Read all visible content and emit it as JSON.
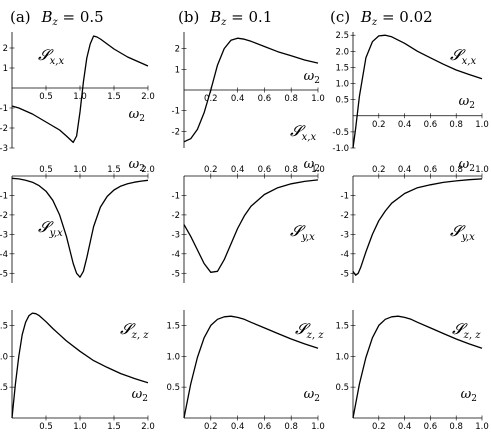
{
  "columns": [
    {
      "prefix": "(a)",
      "var": "B",
      "sub": "z",
      "value": " = 0.5"
    },
    {
      "prefix": "(b)",
      "var": "B",
      "sub": "z",
      "value": " = 0.1"
    },
    {
      "prefix": "(c)",
      "var": "B",
      "sub": "z",
      "value": " = 0.02"
    }
  ],
  "row_labels": [
    {
      "main": "𝓢",
      "sub": "x,x"
    },
    {
      "main": "𝓢",
      "sub": "y,x"
    },
    {
      "main": "𝓢",
      "sub": "z, z"
    }
  ],
  "xlabel": {
    "main": "ω",
    "sub": "2"
  },
  "chart_data": [
    {
      "type": "line",
      "row": 0,
      "col": 0,
      "xlim": [
        0,
        2.0
      ],
      "ylim": [
        -3,
        2.8
      ],
      "xticks": [
        0.5,
        1.0,
        1.5,
        2.0
      ],
      "xtick_labels": [
        "0.5",
        "1.0",
        "1.5",
        "2.0"
      ],
      "yticks": [
        -3,
        -2,
        -1,
        1,
        2
      ],
      "ytick_labels": [
        "-3",
        "-2",
        "-1",
        "1",
        "2"
      ],
      "x": [
        0,
        0.1,
        0.2,
        0.3,
        0.4,
        0.5,
        0.6,
        0.7,
        0.8,
        0.9,
        0.95,
        1.0,
        1.05,
        1.1,
        1.15,
        1.2,
        1.25,
        1.3,
        1.4,
        1.5,
        1.6,
        1.7,
        1.8,
        1.9,
        2.0
      ],
      "y": [
        -0.9,
        -1.0,
        -1.15,
        -1.3,
        -1.5,
        -1.7,
        -1.9,
        -2.1,
        -2.4,
        -2.72,
        -2.4,
        -1.2,
        0.3,
        1.5,
        2.2,
        2.6,
        2.55,
        2.45,
        2.2,
        1.95,
        1.75,
        1.55,
        1.4,
        1.25,
        1.1
      ]
    },
    {
      "type": "line",
      "row": 0,
      "col": 1,
      "xlim": [
        0,
        1.0
      ],
      "ylim": [
        -2.8,
        2.8
      ],
      "xticks": [
        0.2,
        0.4,
        0.6,
        0.8,
        1.0
      ],
      "xtick_labels": [
        "0.2",
        "0.4",
        "0.6",
        "0.8",
        "1.0"
      ],
      "yticks": [
        -2,
        -1,
        1,
        2
      ],
      "ytick_labels": [
        "-2",
        "-1",
        "1",
        "2"
      ],
      "x": [
        0,
        0.05,
        0.1,
        0.15,
        0.2,
        0.25,
        0.3,
        0.35,
        0.4,
        0.45,
        0.5,
        0.6,
        0.7,
        0.8,
        0.9,
        1.0
      ],
      "y": [
        -2.5,
        -2.35,
        -1.9,
        -1.1,
        0.0,
        1.2,
        2.0,
        2.4,
        2.5,
        2.45,
        2.35,
        2.1,
        1.85,
        1.65,
        1.45,
        1.3
      ]
    },
    {
      "type": "line",
      "row": 0,
      "col": 2,
      "xlim": [
        0,
        1.0
      ],
      "ylim": [
        -1.0,
        2.6
      ],
      "xticks": [
        0.2,
        0.4,
        0.6,
        0.8,
        1.0
      ],
      "xtick_labels": [
        "0.2",
        "0.4",
        "0.6",
        "0.8",
        "1.0"
      ],
      "yticks": [
        -1.0,
        -0.5,
        0.5,
        1.0,
        1.5,
        2.0,
        2.5
      ],
      "ytick_labels": [
        "-1.0",
        "-0.5",
        "0.5",
        "1.0",
        "1.5",
        "2.0",
        "2.5"
      ],
      "x": [
        0,
        0.02,
        0.05,
        0.1,
        0.15,
        0.2,
        0.25,
        0.3,
        0.35,
        0.4,
        0.5,
        0.6,
        0.7,
        0.8,
        0.9,
        1.0
      ],
      "y": [
        -1.0,
        -0.4,
        0.6,
        1.8,
        2.3,
        2.48,
        2.5,
        2.45,
        2.35,
        2.25,
        2.0,
        1.8,
        1.6,
        1.42,
        1.28,
        1.15
      ]
    },
    {
      "type": "line",
      "row": 1,
      "col": 0,
      "xlim": [
        0,
        2.0
      ],
      "ylim": [
        -5.5,
        0
      ],
      "xticks": [
        0.5,
        1.0,
        1.5,
        2.0
      ],
      "xtick_labels": [
        "0.5",
        "1.0",
        "1.5",
        "2.0"
      ],
      "yticks": [
        -1,
        -2,
        -3,
        -4,
        -5
      ],
      "ytick_labels": [
        "-1",
        "-2",
        "-3",
        "-4",
        "-5"
      ],
      "x": [
        0,
        0.1,
        0.2,
        0.3,
        0.4,
        0.5,
        0.6,
        0.7,
        0.8,
        0.85,
        0.9,
        0.95,
        1.0,
        1.05,
        1.1,
        1.15,
        1.2,
        1.3,
        1.4,
        1.5,
        1.6,
        1.7,
        1.8,
        1.9,
        2.0
      ],
      "y": [
        -0.12,
        -0.15,
        -0.22,
        -0.32,
        -0.5,
        -0.78,
        -1.25,
        -2.0,
        -3.1,
        -3.8,
        -4.5,
        -5.0,
        -5.2,
        -4.9,
        -4.2,
        -3.4,
        -2.6,
        -1.6,
        -1.05,
        -0.72,
        -0.52,
        -0.4,
        -0.32,
        -0.26,
        -0.22
      ]
    },
    {
      "type": "line",
      "row": 1,
      "col": 1,
      "xlim": [
        0,
        1.0
      ],
      "ylim": [
        -5.5,
        0
      ],
      "xticks": [
        0.2,
        0.4,
        0.6,
        0.8,
        1.0
      ],
      "xtick_labels": [
        "0.2",
        "0.4",
        "0.6",
        "0.8",
        "1.0"
      ],
      "yticks": [
        -1,
        -2,
        -3,
        -4,
        -5
      ],
      "ytick_labels": [
        "-1",
        "-2",
        "-3",
        "-4",
        "-5"
      ],
      "x": [
        0,
        0.05,
        0.1,
        0.15,
        0.2,
        0.25,
        0.3,
        0.35,
        0.4,
        0.45,
        0.5,
        0.6,
        0.7,
        0.8,
        0.9,
        1.0
      ],
      "y": [
        -2.5,
        -3.1,
        -3.8,
        -4.5,
        -4.95,
        -4.9,
        -4.3,
        -3.5,
        -2.7,
        -2.05,
        -1.55,
        -0.95,
        -0.6,
        -0.4,
        -0.28,
        -0.2
      ]
    },
    {
      "type": "line",
      "row": 1,
      "col": 2,
      "xlim": [
        0,
        1.0
      ],
      "ylim": [
        -5.5,
        0
      ],
      "xticks": [
        0.2,
        0.4,
        0.6,
        0.8,
        1.0
      ],
      "xtick_labels": [
        "0.2",
        "0.4",
        "0.6",
        "0.8",
        "1.0"
      ],
      "yticks": [
        -1,
        -2,
        -3,
        -4,
        -5
      ],
      "ytick_labels": [
        "-1",
        "-2",
        "-3",
        "-4",
        "-5"
      ],
      "x": [
        0,
        0.02,
        0.04,
        0.06,
        0.08,
        0.1,
        0.15,
        0.2,
        0.25,
        0.3,
        0.4,
        0.5,
        0.6,
        0.7,
        0.8,
        0.9,
        1.0
      ],
      "y": [
        -4.9,
        -5.1,
        -5.0,
        -4.7,
        -4.3,
        -3.9,
        -3.0,
        -2.3,
        -1.8,
        -1.4,
        -0.9,
        -0.6,
        -0.45,
        -0.33,
        -0.25,
        -0.19,
        -0.15
      ]
    },
    {
      "type": "line",
      "row": 2,
      "col": 0,
      "xlim": [
        0,
        2.0
      ],
      "ylim": [
        0,
        1.75
      ],
      "xticks": [
        0.5,
        1.0,
        1.5,
        2.0
      ],
      "xtick_labels": [
        "0.5",
        "1.0",
        "1.5",
        "2.0"
      ],
      "yticks": [
        0.5,
        1.0,
        1.5
      ],
      "ytick_labels": [
        "0.5",
        "1.0",
        "1.5"
      ],
      "x": [
        0,
        0.05,
        0.1,
        0.15,
        0.2,
        0.25,
        0.3,
        0.35,
        0.4,
        0.5,
        0.6,
        0.7,
        0.8,
        1.0,
        1.2,
        1.4,
        1.6,
        1.8,
        2.0
      ],
      "y": [
        0,
        0.55,
        1.0,
        1.35,
        1.55,
        1.66,
        1.7,
        1.69,
        1.66,
        1.56,
        1.45,
        1.35,
        1.25,
        1.08,
        0.93,
        0.82,
        0.72,
        0.64,
        0.57
      ]
    },
    {
      "type": "line",
      "row": 2,
      "col": 1,
      "xlim": [
        0,
        1.0
      ],
      "ylim": [
        0,
        1.75
      ],
      "xticks": [
        0.2,
        0.4,
        0.6,
        0.8,
        1.0
      ],
      "xtick_labels": [
        "0.2",
        "0.4",
        "0.6",
        "0.8",
        "1.0"
      ],
      "yticks": [
        0.5,
        1.0,
        1.5
      ],
      "ytick_labels": [
        "0.5",
        "1.0",
        "1.5"
      ],
      "x": [
        0,
        0.05,
        0.1,
        0.15,
        0.2,
        0.25,
        0.3,
        0.35,
        0.4,
        0.45,
        0.5,
        0.6,
        0.7,
        0.8,
        0.9,
        1.0
      ],
      "y": [
        0,
        0.55,
        0.98,
        1.3,
        1.5,
        1.6,
        1.64,
        1.65,
        1.63,
        1.6,
        1.55,
        1.46,
        1.37,
        1.28,
        1.2,
        1.13
      ]
    },
    {
      "type": "line",
      "row": 2,
      "col": 2,
      "xlim": [
        0,
        1.0
      ],
      "ylim": [
        0,
        1.75
      ],
      "xticks": [
        0.2,
        0.4,
        0.6,
        0.8,
        1.0
      ],
      "xtick_labels": [
        "0.2",
        "0.4",
        "0.6",
        "0.8",
        "1.0"
      ],
      "yticks": [
        0.5,
        1.0,
        1.5
      ],
      "ytick_labels": [
        "0.5",
        "1.0",
        "1.5"
      ],
      "x": [
        0,
        0.05,
        0.1,
        0.15,
        0.2,
        0.25,
        0.3,
        0.35,
        0.4,
        0.45,
        0.5,
        0.6,
        0.7,
        0.8,
        0.9,
        1.0
      ],
      "y": [
        0,
        0.55,
        0.98,
        1.3,
        1.5,
        1.6,
        1.64,
        1.65,
        1.63,
        1.6,
        1.55,
        1.46,
        1.37,
        1.28,
        1.2,
        1.13
      ]
    }
  ]
}
